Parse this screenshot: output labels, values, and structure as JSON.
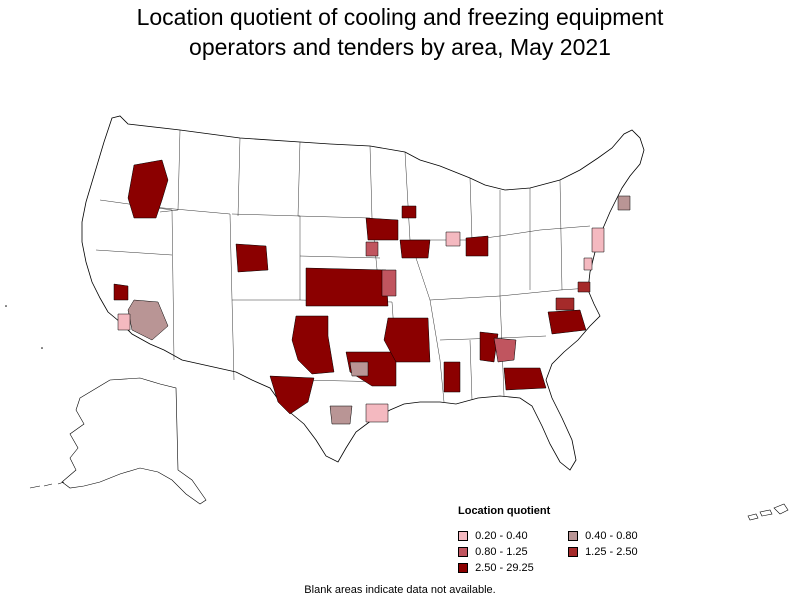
{
  "title_line1": "Location quotient of cooling and freezing equipment",
  "title_line2": "operators and tenders by area, May 2021",
  "legend": {
    "title": "Location quotient",
    "items": [
      {
        "label": "0.20 - 0.40",
        "color": "#f4b9c0"
      },
      {
        "label": "0.40 - 0.80",
        "color": "#b99595"
      },
      {
        "label": "0.80 - 1.25",
        "color": "#c0555f"
      },
      {
        "label": "1.25 - 2.50",
        "color": "#a52a2a"
      },
      {
        "label": "2.50 - 29.25",
        "color": "#8b0000"
      }
    ]
  },
  "footnote": "Blank areas indicate data not available.",
  "colors": {
    "border": "#000000",
    "blank": "#ffffff"
  }
}
